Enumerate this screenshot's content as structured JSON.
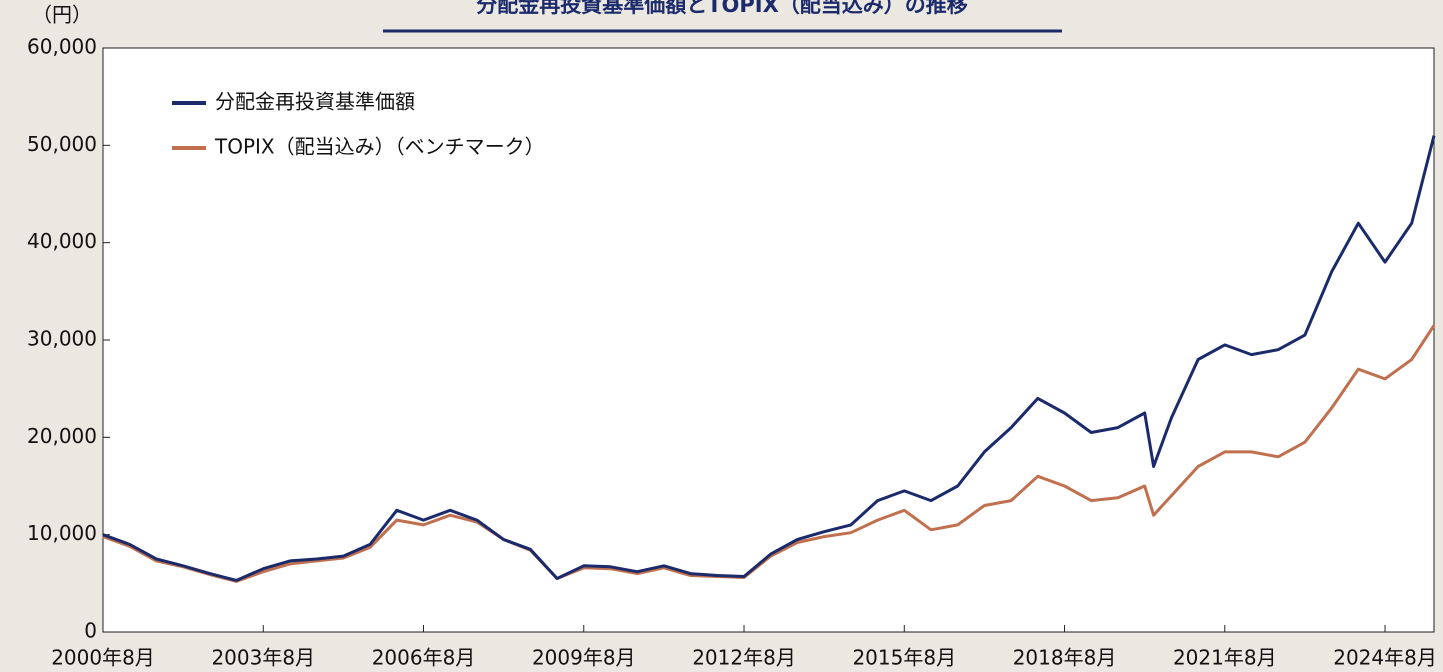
{
  "chart_data": {
    "type": "line",
    "title": "分配金再投資基準価額とTOPIX（配当込み）の推移",
    "y_unit": "（円）",
    "x": [
      "2000-08",
      "2001-02",
      "2001-08",
      "2002-02",
      "2002-08",
      "2003-02",
      "2003-08",
      "2004-02",
      "2004-08",
      "2005-02",
      "2005-08",
      "2006-02",
      "2006-08",
      "2007-02",
      "2007-08",
      "2008-02",
      "2008-08",
      "2009-02",
      "2009-08",
      "2010-02",
      "2010-08",
      "2011-02",
      "2011-08",
      "2012-02",
      "2012-08",
      "2013-02",
      "2013-08",
      "2014-02",
      "2014-08",
      "2015-02",
      "2015-08",
      "2016-02",
      "2016-08",
      "2017-02",
      "2017-08",
      "2018-02",
      "2018-08",
      "2019-02",
      "2019-08",
      "2020-02",
      "2020-04",
      "2020-08",
      "2021-02",
      "2021-08",
      "2022-02",
      "2022-08",
      "2023-02",
      "2023-08",
      "2024-02",
      "2024-08",
      "2025-02",
      "2025-07"
    ],
    "series": [
      {
        "name": "分配金再投資基準価額",
        "color": "#1b2a6b",
        "values": [
          10000,
          9000,
          7500,
          6800,
          6000,
          5300,
          6500,
          7300,
          7500,
          7800,
          9000,
          12500,
          11500,
          12500,
          11500,
          9500,
          8500,
          5500,
          6800,
          6700,
          6200,
          6800,
          6000,
          5800,
          5700,
          8000,
          9500,
          10300,
          11000,
          13500,
          14500,
          13500,
          15000,
          18500,
          21000,
          24000,
          22500,
          20500,
          21000,
          22500,
          17000,
          22000,
          28000,
          29500,
          28500,
          29000,
          30500,
          37000,
          42000,
          38000,
          42000,
          51000
        ]
      },
      {
        "name": "TOPIX（配当込み）（ベンチマーク）",
        "color": "#c0704f",
        "values": [
          9800,
          8800,
          7300,
          6700,
          5900,
          5200,
          6200,
          7000,
          7300,
          7600,
          8700,
          11500,
          11000,
          12000,
          11300,
          9500,
          8400,
          5500,
          6600,
          6500,
          6000,
          6600,
          5800,
          5700,
          5600,
          7800,
          9200,
          9800,
          10200,
          11500,
          12500,
          10500,
          11000,
          13000,
          13500,
          16000,
          15000,
          13500,
          13800,
          15000,
          12000,
          14000,
          17000,
          18500,
          18500,
          18000,
          19500,
          23000,
          27000,
          26000,
          28000,
          31500
        ]
      }
    ],
    "xlim": [
      "2000-08",
      "2025-07"
    ],
    "xticks": [
      {
        "value": "2000-08",
        "label": "2000年8月"
      },
      {
        "value": "2003-08",
        "label": "2003年8月"
      },
      {
        "value": "2006-08",
        "label": "2006年8月"
      },
      {
        "value": "2009-08",
        "label": "2009年8月"
      },
      {
        "value": "2012-08",
        "label": "2012年8月"
      },
      {
        "value": "2015-08",
        "label": "2015年8月"
      },
      {
        "value": "2018-08",
        "label": "2018年8月"
      },
      {
        "value": "2021-08",
        "label": "2021年8月"
      },
      {
        "value": "2024-08",
        "label": "2024年8月"
      }
    ],
    "ylim": [
      0,
      60000
    ],
    "yticks": [
      0,
      {
        "value": 10000,
        "label": "10,000"
      },
      {
        "value": 20000,
        "label": "20,000"
      },
      {
        "value": 30000,
        "label": "30,000"
      },
      {
        "value": 40000,
        "label": "40,000"
      },
      {
        "value": 50000,
        "label": "50,000"
      },
      {
        "value": 60000,
        "label": "60,000"
      }
    ],
    "legend": "upper left"
  }
}
